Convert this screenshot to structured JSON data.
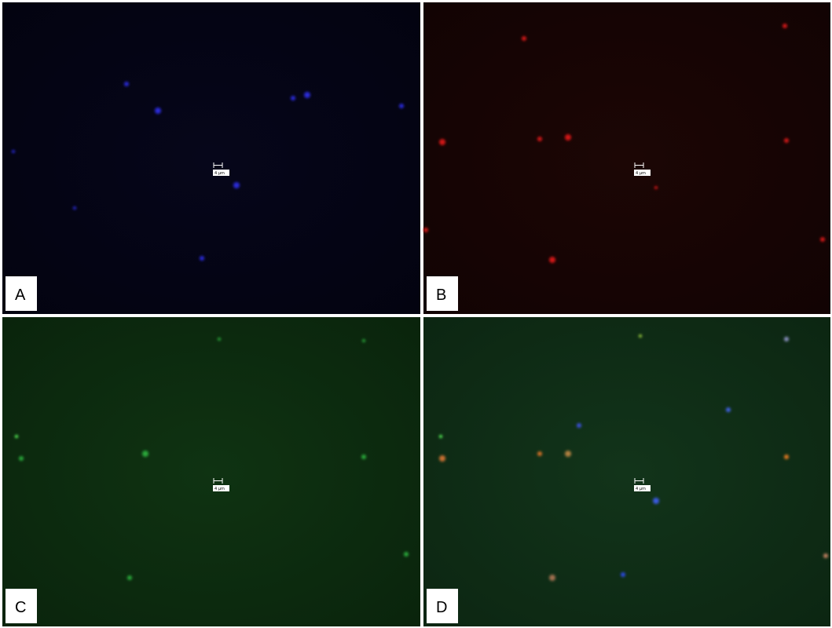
{
  "panels": [
    {
      "label": "A",
      "scale_bar": "4 µm"
    },
    {
      "label": "B",
      "scale_bar": "4 µm"
    },
    {
      "label": "C",
      "scale_bar": "4 µm"
    },
    {
      "label": "D",
      "scale_bar": "4 µm"
    }
  ]
}
